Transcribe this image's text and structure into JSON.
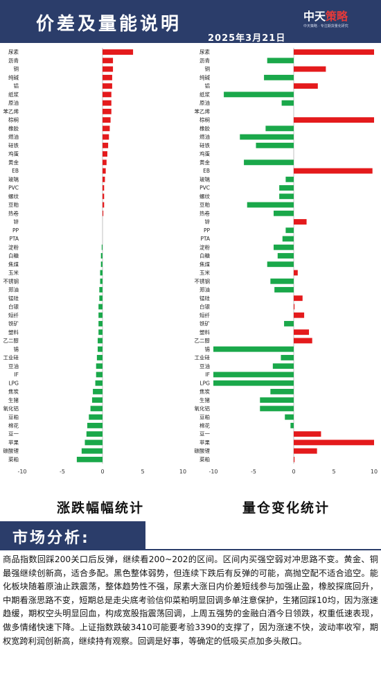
{
  "header": {
    "title": "价差及量能说明",
    "date": "2025年3月21日",
    "logo_prefix": "中天",
    "logo_accent": "策略",
    "logo_tagline": "中天策略 · 专注期货量化研究"
  },
  "colors": {
    "up": "#e41a1c",
    "down": "#1aa84a",
    "brand": "#2b3d6a"
  },
  "chart_data": [
    {
      "type": "bar",
      "orientation": "horizontal",
      "caption": "涨跌幅幅统计",
      "categories": [
        "尿素",
        "沥青",
        "铜",
        "纯碱",
        "铝",
        "纸浆",
        "原油",
        "苯乙烯",
        "棕榈",
        "橡胶",
        "燃油",
        "硅铁",
        "鸡蛋",
        "黄金",
        "EB",
        "玻璃",
        "PVC",
        "螺纹",
        "豆粕",
        "热卷",
        "锌",
        "PP",
        "PTA",
        "淀粉",
        "白糖",
        "焦煤",
        "玉米",
        "不锈钢",
        "郑油",
        "锰硅",
        "白银",
        "短纤",
        "铁矿",
        "塑料",
        "乙二醇",
        "锡",
        "工业硅",
        "豆油",
        "IF",
        "LPG",
        "焦炭",
        "生猪",
        "氧化铝",
        "豆粕2",
        "棉花",
        "豆一",
        "苹果",
        "碳酸锂",
        "菜粕"
      ],
      "values": [
        3.8,
        1.3,
        1.3,
        1.2,
        1.2,
        1.1,
        1.1,
        1.1,
        1.0,
        0.9,
        0.8,
        0.7,
        0.6,
        0.5,
        0.4,
        0.3,
        0.2,
        0.2,
        0.2,
        0.1,
        0,
        0,
        0,
        -0.1,
        -0.2,
        -0.2,
        -0.3,
        -0.3,
        -0.4,
        -0.4,
        -0.5,
        -0.5,
        -0.5,
        -0.5,
        -0.6,
        -0.6,
        -0.7,
        -0.8,
        -0.8,
        -0.9,
        -1.2,
        -1.3,
        -1.5,
        -1.7,
        -1.9,
        -2.0,
        -2.2,
        -2.6,
        -3.2
      ],
      "xlim": [
        -10,
        10
      ],
      "xticks": [
        -10,
        -5,
        0,
        5,
        10
      ]
    },
    {
      "type": "bar",
      "orientation": "horizontal",
      "caption": "量仓变化统计",
      "categories": [
        "尿素",
        "沥青",
        "铜",
        "纯碱",
        "铝",
        "纸浆",
        "原油",
        "苯乙烯",
        "棕榈",
        "橡胶",
        "燃油",
        "硅铁",
        "鸡蛋",
        "黄金",
        "EB",
        "玻璃",
        "PVC",
        "螺纹",
        "豆粕",
        "热卷",
        "锌",
        "PP",
        "PTA",
        "淀粉",
        "白糖",
        "焦煤",
        "玉米",
        "不锈钢",
        "郑油",
        "锰硅",
        "白银",
        "短纤",
        "铁矿",
        "塑料",
        "乙二醇",
        "锡",
        "工业硅",
        "豆油",
        "IF",
        "LPG",
        "焦炭",
        "生猪",
        "氧化铝",
        "豆粕2",
        "棉花",
        "豆一",
        "苹果",
        "碳酸锂",
        "菜粕"
      ],
      "values": [
        10,
        -3.3,
        4,
        -3.7,
        3,
        -8.7,
        -1.5,
        0,
        10,
        -3.5,
        -6.7,
        -4.7,
        0,
        -6.2,
        9.8,
        -1,
        -1.8,
        -1.8,
        -5.8,
        -2.5,
        1.6,
        -1,
        -1.4,
        -2.5,
        -2,
        -3.3,
        0.5,
        -2.9,
        -2.4,
        1.1,
        0.1,
        1.3,
        -1.2,
        1.9,
        2.3,
        -10,
        -1.6,
        -2.6,
        -10,
        -10,
        -2.9,
        -4.2,
        -4.2,
        -1.1,
        -0.4,
        3.4,
        10,
        2.9,
        0.1
      ],
      "xlim": [
        -10,
        10
      ],
      "xticks": [
        -10,
        -5,
        0,
        5,
        10
      ]
    }
  ],
  "section": {
    "title": "市场分析:"
  },
  "analysis": "商品指数回踩200关口后反弹，继续看200~202的区间。区间内买强空弱对冲思路不变。黄金、铜最强继续创新高，适合多配。黑色整体弱势，但连续下跌后有反弹的可能，高抛空配不适合追空。能化板块随着原油止跌震荡，整体趋势性不强，尿素大涨日内价差短线参与加强止盈，橡胶探底回升，中期看涨思路不变，短期总是走尖底考验信仰菜粕明显回调多单注意保护，生猪回踩10均，因为涨速趋缓，期权空头明显回血，构成宽股指震荡回调，上周五强势的金融白酒今日领跌，权重低速表现，做多情绪快速下降。上证指数跌破3410可能要考验3390的支撑了，因为涨速不快，波动率收窄，期权宽跨利润创新高，继续持有观察。回调是好事，等确定的低吸买点加多头敞口。"
}
